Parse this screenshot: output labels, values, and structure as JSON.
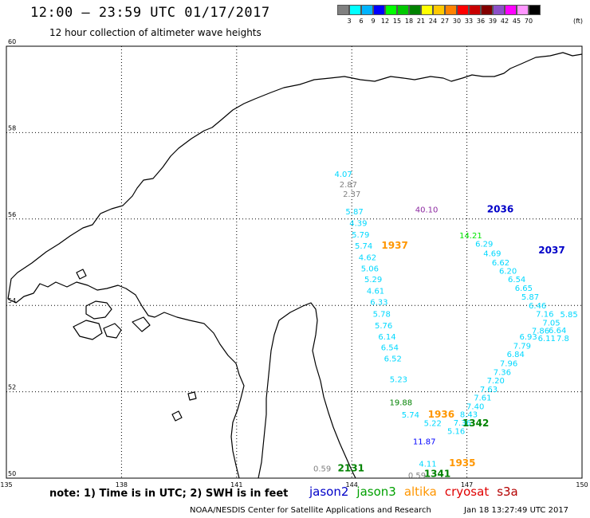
{
  "header": {
    "title": "12:00 – 23:59 UTC 01/17/2017",
    "subtitle": "12 hour collection of altimeter wave heights"
  },
  "legend": {
    "swatches": [
      {
        "label": "3",
        "color": "#808080"
      },
      {
        "label": "6",
        "color": "#00ffff"
      },
      {
        "label": "9",
        "color": "#00b4ff"
      },
      {
        "label": "12",
        "color": "#0000ff"
      },
      {
        "label": "15",
        "color": "#00ff00"
      },
      {
        "label": "18",
        "color": "#00c800"
      },
      {
        "label": "21",
        "color": "#008200"
      },
      {
        "label": "24",
        "color": "#ffff00"
      },
      {
        "label": "27",
        "color": "#ffc800"
      },
      {
        "label": "30",
        "color": "#ff8200"
      },
      {
        "label": "33",
        "color": "#ff0000"
      },
      {
        "label": "36",
        "color": "#c80000"
      },
      {
        "label": "39",
        "color": "#820000"
      },
      {
        "label": "42",
        "color": "#8c50c8"
      },
      {
        "label": "45",
        "color": "#ff00ff"
      },
      {
        "label": "70",
        "color": "#ff96ff"
      },
      {
        "label": "",
        "color": "#000000"
      }
    ],
    "unit": "(ft)"
  },
  "axes": {
    "lon_labels": [
      "135",
      "138",
      "141",
      "144",
      "147",
      "150"
    ],
    "lat_labels": [
      "50",
      "52",
      "54",
      "56",
      "58",
      "60"
    ]
  },
  "wave_heights": [
    {
      "v": "4.07",
      "lon": 143.78,
      "lat": 56.97,
      "c": "#00d8ff"
    },
    {
      "v": "2.87",
      "lon": 143.91,
      "lat": 56.73,
      "c": "#808080"
    },
    {
      "v": "2.37",
      "lon": 144.0,
      "lat": 56.51,
      "c": "#808080"
    },
    {
      "v": "5.87",
      "lon": 144.07,
      "lat": 56.11,
      "c": "#00d8ff"
    },
    {
      "v": "4.39",
      "lon": 144.17,
      "lat": 55.84,
      "c": "#00d8ff"
    },
    {
      "v": "5.79",
      "lon": 144.23,
      "lat": 55.57,
      "c": "#00d8ff"
    },
    {
      "v": "5.74",
      "lon": 144.31,
      "lat": 55.31,
      "c": "#00d8ff"
    },
    {
      "v": "4.62",
      "lon": 144.41,
      "lat": 55.05,
      "c": "#00d8ff"
    },
    {
      "v": "5.06",
      "lon": 144.47,
      "lat": 54.79,
      "c": "#00d8ff"
    },
    {
      "v": "5.29",
      "lon": 144.56,
      "lat": 54.54,
      "c": "#00d8ff"
    },
    {
      "v": "4.61",
      "lon": 144.62,
      "lat": 54.27,
      "c": "#00d8ff"
    },
    {
      "v": "6.33",
      "lon": 144.71,
      "lat": 54.01,
      "c": "#00d8ff"
    },
    {
      "v": "5.78",
      "lon": 144.78,
      "lat": 53.74,
      "c": "#00d8ff"
    },
    {
      "v": "5.76",
      "lon": 144.83,
      "lat": 53.47,
      "c": "#00d8ff"
    },
    {
      "v": "6.14",
      "lon": 144.92,
      "lat": 53.21,
      "c": "#00d8ff"
    },
    {
      "v": "6.54",
      "lon": 144.99,
      "lat": 52.96,
      "c": "#00d8ff"
    },
    {
      "v": "6.52",
      "lon": 145.07,
      "lat": 52.7,
      "c": "#00d8ff"
    },
    {
      "v": "5.23",
      "lon": 145.22,
      "lat": 52.22,
      "c": "#00d8ff"
    },
    {
      "v": "19.88",
      "lon": 145.28,
      "lat": 51.69,
      "c": "#008200"
    },
    {
      "v": "5.74",
      "lon": 145.53,
      "lat": 51.4,
      "c": "#00d8ff"
    },
    {
      "v": "5.22",
      "lon": 146.11,
      "lat": 51.21,
      "c": "#00d8ff"
    },
    {
      "v": "11.87",
      "lon": 145.89,
      "lat": 50.78,
      "c": "#0000ff"
    },
    {
      "v": "4.11",
      "lon": 145.98,
      "lat": 50.27,
      "c": "#00d8ff"
    },
    {
      "v": "0.59",
      "lon": 145.7,
      "lat": 50.0,
      "c": "#808080"
    },
    {
      "v": "0.59",
      "lon": 143.23,
      "lat": 50.16,
      "c": "#808080"
    },
    {
      "v": "40.10",
      "lon": 145.95,
      "lat": 56.15,
      "c": "#8c28a0"
    },
    {
      "v": "14.21",
      "lon": 147.1,
      "lat": 55.55,
      "c": "#00e800"
    },
    {
      "v": "6.29",
      "lon": 147.45,
      "lat": 55.36,
      "c": "#00d8ff"
    },
    {
      "v": "4.69",
      "lon": 147.66,
      "lat": 55.14,
      "c": "#00d8ff"
    },
    {
      "v": "6.62",
      "lon": 147.88,
      "lat": 54.93,
      "c": "#00d8ff"
    },
    {
      "v": "6.20",
      "lon": 148.07,
      "lat": 54.73,
      "c": "#00d8ff"
    },
    {
      "v": "6.54",
      "lon": 148.3,
      "lat": 54.54,
      "c": "#00d8ff"
    },
    {
      "v": "6.65",
      "lon": 148.48,
      "lat": 54.34,
      "c": "#00d8ff"
    },
    {
      "v": "5.87",
      "lon": 148.65,
      "lat": 54.13,
      "c": "#00d8ff"
    },
    {
      "v": "6.46",
      "lon": 148.84,
      "lat": 53.93,
      "c": "#00d8ff"
    },
    {
      "v": "7.16",
      "lon": 149.03,
      "lat": 53.74,
      "c": "#00d8ff"
    },
    {
      "v": "7.05",
      "lon": 149.2,
      "lat": 53.53,
      "c": "#00d8ff"
    },
    {
      "v": "6.64",
      "lon": 149.36,
      "lat": 53.36,
      "c": "#00d8ff"
    },
    {
      "v": "7.8",
      "lon": 149.5,
      "lat": 53.17,
      "c": "#00d8ff"
    },
    {
      "v": "5.85",
      "lon": 149.66,
      "lat": 53.73,
      "c": "#00d8ff"
    },
    {
      "v": "6.11",
      "lon": 149.08,
      "lat": 53.17,
      "c": "#00d8ff"
    },
    {
      "v": "7.86",
      "lon": 148.92,
      "lat": 53.35,
      "c": "#00d8ff"
    },
    {
      "v": "6.93",
      "lon": 148.6,
      "lat": 53.21,
      "c": "#00d8ff"
    },
    {
      "v": "7.79",
      "lon": 148.44,
      "lat": 53.0,
      "c": "#00d8ff"
    },
    {
      "v": "6.84",
      "lon": 148.27,
      "lat": 52.8,
      "c": "#00d8ff"
    },
    {
      "v": "7.96",
      "lon": 148.09,
      "lat": 52.59,
      "c": "#00d8ff"
    },
    {
      "v": "7.36",
      "lon": 147.92,
      "lat": 52.39,
      "c": "#00d8ff"
    },
    {
      "v": "7.20",
      "lon": 147.75,
      "lat": 52.2,
      "c": "#00d8ff"
    },
    {
      "v": "7.63",
      "lon": 147.57,
      "lat": 51.99,
      "c": "#00d8ff"
    },
    {
      "v": "7.61",
      "lon": 147.41,
      "lat": 51.8,
      "c": "#00d8ff"
    },
    {
      "v": "7.40",
      "lon": 147.22,
      "lat": 51.6,
      "c": "#00d8ff"
    },
    {
      "v": "8.43",
      "lon": 147.05,
      "lat": 51.41,
      "c": "#00d8ff"
    },
    {
      "v": "7.36",
      "lon": 146.88,
      "lat": 51.22,
      "c": "#00d8ff"
    },
    {
      "v": "5.16",
      "lon": 146.72,
      "lat": 51.02,
      "c": "#00d8ff"
    }
  ],
  "pass_times": [
    {
      "t": "1937",
      "lon": 145.12,
      "lat": 55.31,
      "c": "#ff9600"
    },
    {
      "t": "2036",
      "lon": 147.87,
      "lat": 56.15,
      "c": "#0000c8"
    },
    {
      "t": "2037",
      "lon": 149.21,
      "lat": 55.2,
      "c": "#0000c8"
    },
    {
      "t": "1936",
      "lon": 146.33,
      "lat": 51.4,
      "c": "#ff9600"
    },
    {
      "t": "1342",
      "lon": 147.23,
      "lat": 51.2,
      "c": "#008200"
    },
    {
      "t": "1935",
      "lon": 146.88,
      "lat": 50.28,
      "c": "#ff9600"
    },
    {
      "t": "1341",
      "lon": 146.23,
      "lat": 50.03,
      "c": "#008200"
    },
    {
      "t": "2131",
      "lon": 143.98,
      "lat": 50.16,
      "c": "#008200"
    }
  ],
  "note": "note: 1) Time is in UTC; 2) SWH is in feet",
  "satellites": [
    {
      "name": "jason2",
      "color": "#0000c8"
    },
    {
      "name": "jason3",
      "color": "#00a000"
    },
    {
      "name": "altika",
      "color": "#ff9600"
    },
    {
      "name": "cryosat",
      "color": "#e00000"
    },
    {
      "name": "s3a",
      "color": "#b40000"
    }
  ],
  "footer": {
    "credit": "NOAA/NESDIS Center for Satellite Applications and Research",
    "timestamp": "Jan 18 13:27:49 UTC 2017"
  }
}
